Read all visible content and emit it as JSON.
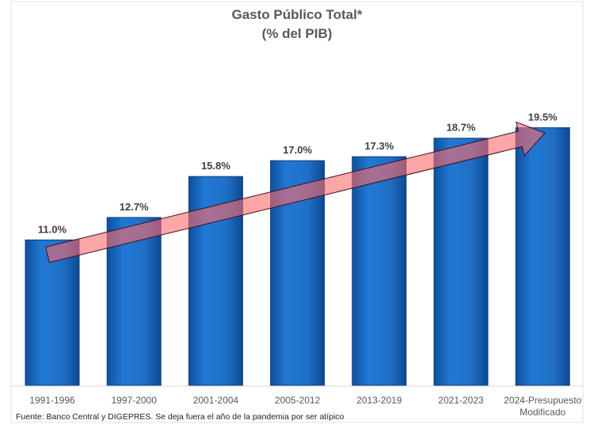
{
  "chart_data": {
    "type": "bar",
    "title": "Gasto Público Total*",
    "subtitle": "(% del PIB)",
    "categories": [
      "1991-1996",
      "1997-2000",
      "2001-2004",
      "2005-2012",
      "2013-2019",
      "2021-2023",
      "2024-Presupuesto Modificado"
    ],
    "values": [
      11.0,
      12.7,
      15.8,
      17.0,
      17.3,
      18.7,
      19.5
    ],
    "data_labels": [
      "11.0%",
      "12.7%",
      "15.8%",
      "17.0%",
      "17.3%",
      "18.7%",
      "19.5%"
    ],
    "ylim": [
      0,
      20
    ],
    "grid": false,
    "bar_color": "#1f6fc5",
    "trend_arrow_color": "#ff6b6b",
    "annotation": "Fuente: Banco Central y DIGEPRES. Se deja fuera el año de la pandemia por ser atípico"
  }
}
